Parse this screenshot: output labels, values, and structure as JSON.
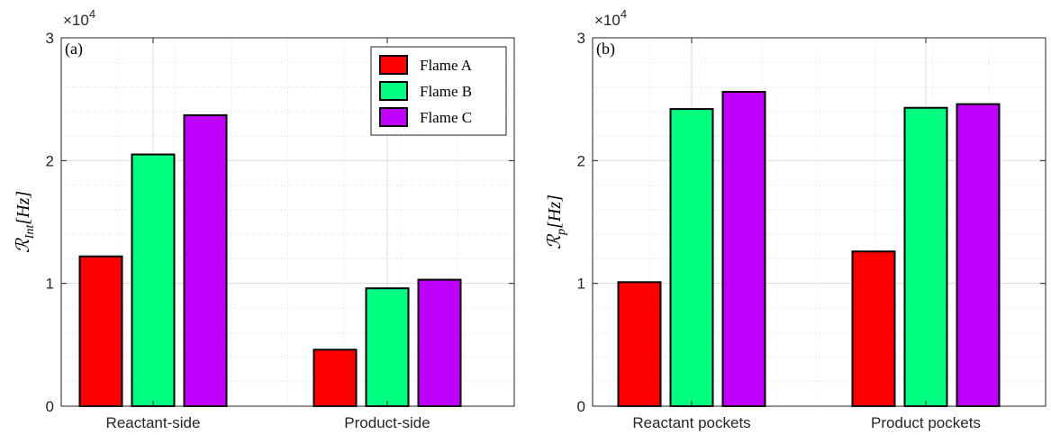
{
  "colors": {
    "Flame A": "#ff0000",
    "Flame B": "#00ff80",
    "Flame C": "#bf00ff"
  },
  "chart_data": [
    {
      "type": "bar",
      "panel_label": "(a)",
      "ylabel": "ℛInt[Hz]",
      "ylabel_parts": {
        "main": "ℛ",
        "sub": "Int",
        "unit": "[Hz]"
      },
      "ylim": [
        0,
        30000
      ],
      "yticks": [
        0,
        10000,
        20000,
        30000
      ],
      "ytick_labels": [
        "0",
        "1",
        "2",
        "3"
      ],
      "y_exponent": "×10",
      "y_exponent_power": "4",
      "grid": true,
      "legend_position": "top-right",
      "categories": [
        "Reactant-side",
        "Product-side"
      ],
      "series": [
        {
          "name": "Flame A",
          "values": [
            12200,
            4600
          ]
        },
        {
          "name": "Flame B",
          "values": [
            20500,
            9600
          ]
        },
        {
          "name": "Flame C",
          "values": [
            23700,
            10300
          ]
        }
      ]
    },
    {
      "type": "bar",
      "panel_label": "(b)",
      "ylabel": "ℛp[Hz]",
      "ylabel_parts": {
        "main": "ℛ",
        "sub": "p",
        "unit": "[Hz]"
      },
      "ylim": [
        0,
        30000
      ],
      "yticks": [
        0,
        10000,
        20000,
        30000
      ],
      "ytick_labels": [
        "0",
        "1",
        "2",
        "3"
      ],
      "y_exponent": "×10",
      "y_exponent_power": "4",
      "grid": true,
      "categories": [
        "Reactant pockets",
        "Product pockets"
      ],
      "series": [
        {
          "name": "Flame A",
          "values": [
            10100,
            12600
          ]
        },
        {
          "name": "Flame B",
          "values": [
            24200,
            24300
          ]
        },
        {
          "name": "Flame C",
          "values": [
            25600,
            24600
          ]
        }
      ]
    }
  ]
}
